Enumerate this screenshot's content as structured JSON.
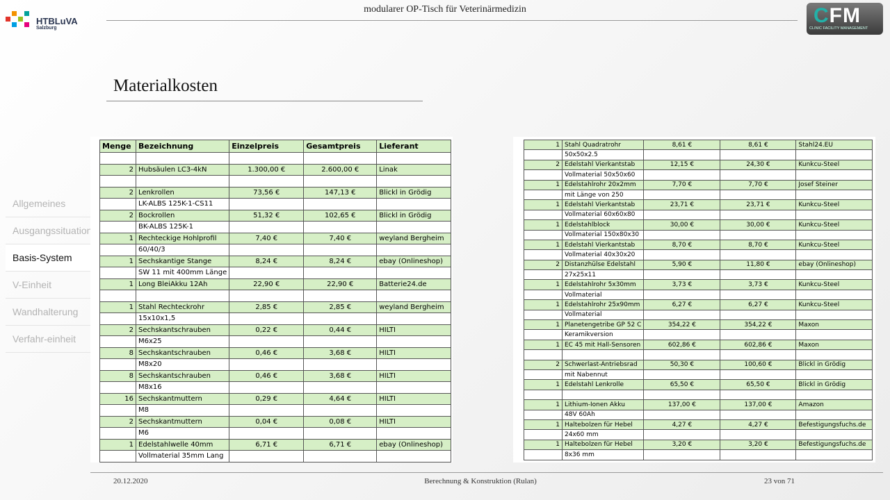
{
  "header": {
    "title": "modularer  OP-Tisch  für  Veterinärmedizin",
    "logo_left": {
      "name": "HTBLuVA",
      "sub": "Salzburg"
    },
    "logo_right": {
      "mark": "FM",
      "tagline": "CLINIC FACILITY MANAGEMENT"
    }
  },
  "section_title": "Materialkosten",
  "nav": {
    "items": [
      "Allgemeines",
      "Ausgangssituation",
      "Basis-System",
      "V-Einheit",
      "Wandhalterung",
      "Verfahr-einheit"
    ],
    "active": 2
  },
  "columns": [
    "Menge",
    "Bezeichnung",
    "Einzelpreis",
    "Gesamtpreis",
    "Lieferant"
  ],
  "table_left": [
    {
      "menge": 2,
      "bezeichnung": "Hubsäulen LC3-4kN",
      "einzelpreis": "1.300,00 €",
      "gesamtpreis": "2.600,00 €",
      "lieferant": "Linak"
    },
    {
      "menge": 2,
      "bezeichnung": "Lenkrollen",
      "einzelpreis": "73,56 €",
      "gesamtpreis": "147,13 €",
      "lieferant": "Blickl in Grödig",
      "detail": "LK-ALBS 125K-1-CS11"
    },
    {
      "menge": 2,
      "bezeichnung": "Bockrollen",
      "einzelpreis": "51,32 €",
      "gesamtpreis": "102,65 €",
      "lieferant": "Blickl in Grödig",
      "detail": "BK-ALBS 125K-1"
    },
    {
      "menge": 1,
      "bezeichnung": "Rechteckige Hohlprofil",
      "einzelpreis": "7,40 €",
      "gesamtpreis": "7,40 €",
      "lieferant": "weyland Bergheim",
      "detail": "60/40/3"
    },
    {
      "menge": 1,
      "bezeichnung": "Sechskantige Stange",
      "einzelpreis": "8,24 €",
      "gesamtpreis": "8,24 €",
      "lieferant": "ebay (Onlineshop)",
      "detail": "SW 11 mit 400mm Länge"
    },
    {
      "menge": 1,
      "bezeichnung": "Long BleiAkku 12Ah",
      "einzelpreis": "22,90 €",
      "gesamtpreis": "22,90 €",
      "lieferant": "Batterie24.de"
    },
    {
      "menge": 1,
      "bezeichnung": "Stahl Rechteckrohr",
      "einzelpreis": "2,85 €",
      "gesamtpreis": "2,85 €",
      "lieferant": "weyland Bergheim",
      "detail": "15x10x1,5"
    },
    {
      "menge": 2,
      "bezeichnung": "Sechskantschrauben",
      "einzelpreis": "0,22 €",
      "gesamtpreis": "0,44 €",
      "lieferant": "HILTI",
      "detail": "M6x25"
    },
    {
      "menge": 8,
      "bezeichnung": "Sechskantschrauben",
      "einzelpreis": "0,46 €",
      "gesamtpreis": "3,68 €",
      "lieferant": "HILTI",
      "detail": "M8x20"
    },
    {
      "menge": 8,
      "bezeichnung": "Sechskantschrauben",
      "einzelpreis": "0,46 €",
      "gesamtpreis": "3,68 €",
      "lieferant": "HILTI",
      "detail": "M8x16"
    },
    {
      "menge": 16,
      "bezeichnung": "Sechskantmuttern",
      "einzelpreis": "0,29 €",
      "gesamtpreis": "4,64 €",
      "lieferant": "HILTI",
      "detail": "M8"
    },
    {
      "menge": 2,
      "bezeichnung": "Sechskantmuttern",
      "einzelpreis": "0,04 €",
      "gesamtpreis": "0,08 €",
      "lieferant": "HILTI",
      "detail": "M6"
    },
    {
      "menge": 1,
      "bezeichnung": "Edelstahlwelle 40mm",
      "einzelpreis": "6,71 €",
      "gesamtpreis": "6,71 €",
      "lieferant": "ebay (Onlineshop)",
      "detail": "Vollmaterial 35mm Lang"
    }
  ],
  "table_right": [
    {
      "menge": 1,
      "bezeichnung": "Stahl Quadratrohr",
      "einzelpreis": "8,61 €",
      "gesamtpreis": "8,61 €",
      "lieferant": "Stahl24.EU",
      "detail": "50x50x2.5"
    },
    {
      "menge": 2,
      "bezeichnung": "Edelstahl Vierkantstab",
      "einzelpreis": "12,15 €",
      "gesamtpreis": "24,30 €",
      "lieferant": "Kunkcu-Steel",
      "detail": "Vollmaterial 50x50x60"
    },
    {
      "menge": 1,
      "bezeichnung": "Edelstahlrohr 20x2mm",
      "einzelpreis": "7,70 €",
      "gesamtpreis": "7,70 €",
      "lieferant": "Josef Steiner",
      "detail": "mit Länge von 250"
    },
    {
      "menge": 1,
      "bezeichnung": "Edelstahl Vierkantstab",
      "einzelpreis": "23,71 €",
      "gesamtpreis": "23,71 €",
      "lieferant": "Kunkcu-Steel",
      "detail": "Vollmaterial 60x60x80"
    },
    {
      "menge": 1,
      "bezeichnung": "Edelstahlblock",
      "einzelpreis": "30,00 €",
      "gesamtpreis": "30,00 €",
      "lieferant": "Kunkcu-Steel",
      "detail": "Vollmaterial 150x80x30"
    },
    {
      "menge": 1,
      "bezeichnung": "Edelstahl Vierkantstab",
      "einzelpreis": "8,70 €",
      "gesamtpreis": "8,70 €",
      "lieferant": "Kunkcu-Steel",
      "detail": "Vollmaterial 40x30x20"
    },
    {
      "menge": 2,
      "bezeichnung": "Distanzhülse Edelstahl",
      "einzelpreis": "5,90 €",
      "gesamtpreis": "11,80 €",
      "lieferant": "ebay (Onlineshop)",
      "detail": "27x25x11"
    },
    {
      "menge": 1,
      "bezeichnung": "Edelstahlrohr 5x30mm",
      "einzelpreis": "3,73 €",
      "gesamtpreis": "3,73 €",
      "lieferant": "Kunkcu-Steel",
      "detail": "Vollmaterial"
    },
    {
      "menge": 1,
      "bezeichnung": "Edelstahlrohr 25x90mm",
      "einzelpreis": "6,27 €",
      "gesamtpreis": "6,27 €",
      "lieferant": "Kunkcu-Steel",
      "detail": "Vollmaterial"
    },
    {
      "menge": 1,
      "bezeichnung": "Planetengetribe GP 52 C",
      "einzelpreis": "354,22 €",
      "gesamtpreis": "354,22 €",
      "lieferant": "Maxon",
      "detail": "Keramikversion"
    },
    {
      "menge": 1,
      "bezeichnung": "EC 45 mit Hall-Sensoren",
      "einzelpreis": "602,86 €",
      "gesamtpreis": "602,86 €",
      "lieferant": "Maxon"
    },
    {
      "menge": 2,
      "bezeichnung": "Schwerlast-Antriebsrad",
      "einzelpreis": "50,30 €",
      "gesamtpreis": "100,60 €",
      "lieferant": "Blickl in Grödig",
      "detail": "mit Nabennut"
    },
    {
      "menge": 1,
      "bezeichnung": "Edelstahl Lenkrolle",
      "einzelpreis": "65,50 €",
      "gesamtpreis": "65,50 €",
      "lieferant": "Blickl in Grödig"
    },
    {
      "menge": 1,
      "bezeichnung": "Lithium-Ionen Akku",
      "einzelpreis": "137,00 €",
      "gesamtpreis": "137,00 €",
      "lieferant": "Amazon",
      "detail": "48V 60Ah"
    },
    {
      "menge": 1,
      "bezeichnung": "Haltebolzen für Hebel",
      "einzelpreis": "4,27 €",
      "gesamtpreis": "4,27 €",
      "lieferant": "Befestigungsfuchs.de",
      "detail": "24x60 mm"
    },
    {
      "menge": 1,
      "bezeichnung": "Haltebolzen für Hebel",
      "einzelpreis": "3,20 €",
      "gesamtpreis": "3,20 €",
      "lieferant": "Befestigungsfuchs.de",
      "detail": "8x36 mm"
    }
  ],
  "footer": {
    "date": "20.12.2020",
    "center": "Berechnung & Konstruktion (Rulan)",
    "page": "23 von 71"
  }
}
